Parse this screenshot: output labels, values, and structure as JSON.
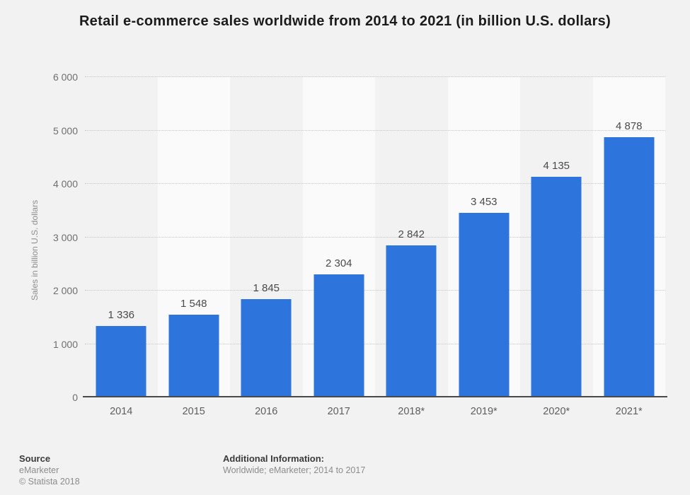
{
  "chart_data": {
    "type": "bar",
    "title": "Retail e-commerce sales worldwide from 2014 to 2021 (in billion U.S. dollars)",
    "categories": [
      "2014",
      "2015",
      "2016",
      "2017",
      "2018*",
      "2019*",
      "2020*",
      "2021*"
    ],
    "values": [
      1336,
      1548,
      1845,
      2304,
      2842,
      3453,
      4135,
      4878
    ],
    "value_labels": [
      "1 336",
      "1 548",
      "1 845",
      "2 304",
      "2 842",
      "3 453",
      "4 135",
      "4 878"
    ],
    "xlabel": "",
    "ylabel": "Sales in billion U.S. dollars",
    "ylim": [
      0,
      6000
    ],
    "yticks": [
      {
        "value": 0,
        "label": "0"
      },
      {
        "value": 1000,
        "label": "1 000"
      },
      {
        "value": 2000,
        "label": "2 000"
      },
      {
        "value": 3000,
        "label": "3 000"
      },
      {
        "value": 4000,
        "label": "4 000"
      },
      {
        "value": 5000,
        "label": "5 000"
      },
      {
        "value": 6000,
        "label": "6 000"
      }
    ],
    "grid": "horizontal-dotted",
    "legend": "none",
    "background_stripes": "alternating vertical bands per category"
  },
  "footer": {
    "source_label": "Source",
    "source_name": "eMarketer",
    "copyright": "© Statista 2018",
    "additional_info_label": "Additional Information:",
    "additional_info_text": "Worldwide; eMarketer; 2014 to 2017"
  },
  "colors": {
    "bar": "#2d74dc",
    "page_bg": "#f2f2f2",
    "stripe": "#fafafa",
    "grid": "#c6c6c6",
    "axis": "#4a4a4a"
  }
}
